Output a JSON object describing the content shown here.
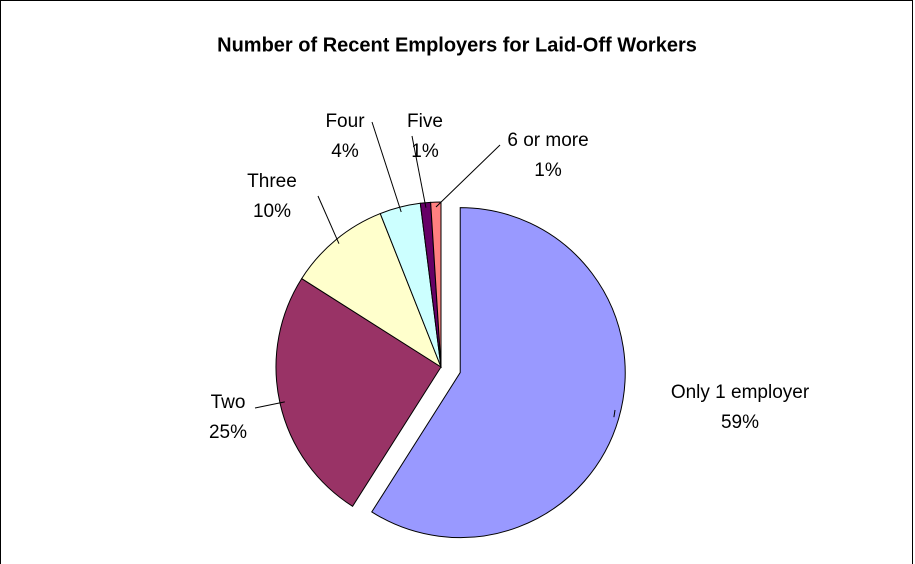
{
  "chart_data": {
    "type": "pie",
    "title": "Number of Recent Employers for Laid-Off Workers",
    "categories": [
      "Only 1 employer",
      "Two",
      "Three",
      "Four",
      "Five",
      "6 or more"
    ],
    "values": [
      59,
      25,
      10,
      4,
      1,
      1
    ],
    "value_labels": [
      "59%",
      "25%",
      "10%",
      "4%",
      "1%",
      "1%"
    ],
    "colors": [
      "#9999ff",
      "#993366",
      "#ffffcc",
      "#ccffff",
      "#660066",
      "#ff8080"
    ]
  }
}
